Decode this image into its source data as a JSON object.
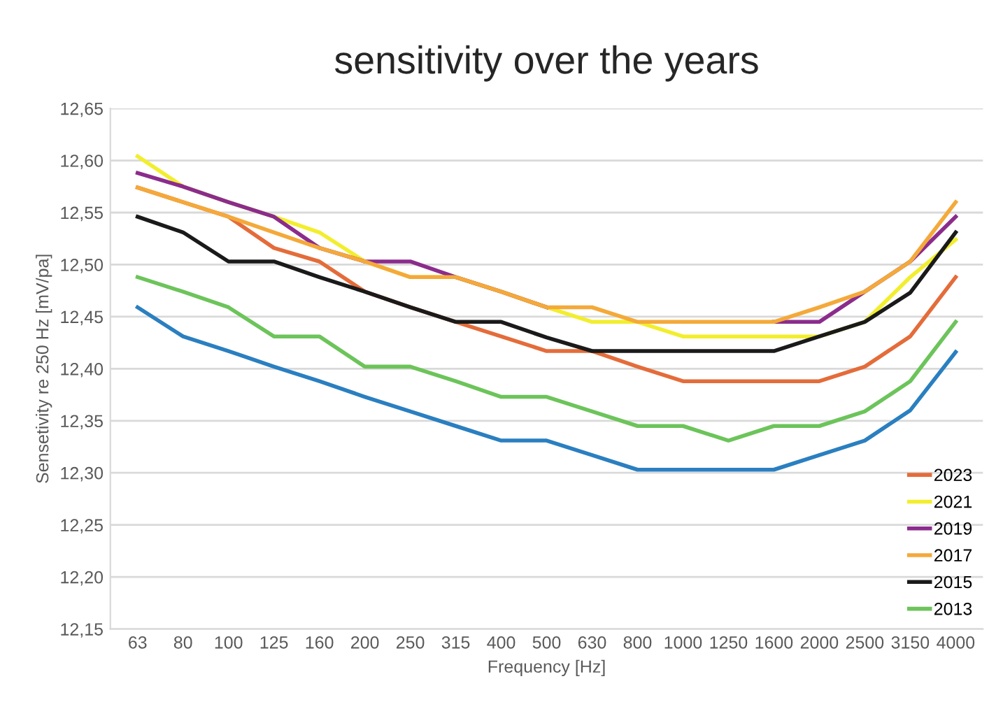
{
  "chart_data": {
    "type": "line",
    "title": "sensitivity over the years",
    "xlabel": "Frequency [Hz]",
    "ylabel": "Sensetivity re 250 Hz [mV/pa]",
    "categories": [
      "63",
      "80",
      "100",
      "125",
      "160",
      "200",
      "250",
      "315",
      "400",
      "500",
      "630",
      "800",
      "1000",
      "1250",
      "1600",
      "2000",
      "2500",
      "3150",
      "4000"
    ],
    "ylim": [
      12.15,
      12.65
    ],
    "yticks": [
      {
        "value": 12.15,
        "label": "12,15"
      },
      {
        "value": 12.2,
        "label": "12,20"
      },
      {
        "value": 12.25,
        "label": "12,25"
      },
      {
        "value": 12.3,
        "label": "12,30"
      },
      {
        "value": 12.35,
        "label": "12,35"
      },
      {
        "value": 12.4,
        "label": "12,40"
      },
      {
        "value": 12.45,
        "label": "12,45"
      },
      {
        "value": 12.5,
        "label": "12,50"
      },
      {
        "value": 12.55,
        "label": "12,55"
      },
      {
        "value": 12.6,
        "label": "12,60"
      },
      {
        "value": 12.65,
        "label": "12,65"
      }
    ],
    "grid": "y",
    "legend": "bottom right",
    "marker": "none",
    "line_style": "solid",
    "series": [
      {
        "color": "#2a7fc0",
        "values": [
          12.459,
          12.431,
          12.417,
          12.402,
          12.388,
          12.373,
          12.359,
          12.345,
          12.331,
          12.331,
          12.317,
          12.303,
          12.303,
          12.303,
          12.303,
          12.317,
          12.331,
          12.36,
          12.416
        ]
      },
      {
        "name": "2023",
        "color": "#e46c3a",
        "values": [
          12.574,
          12.56,
          12.546,
          12.516,
          12.503,
          12.474,
          12.459,
          12.445,
          12.431,
          12.417,
          12.417,
          12.402,
          12.388,
          12.388,
          12.388,
          12.388,
          12.402,
          12.431,
          12.488
        ]
      },
      {
        "name": "2021",
        "color": "#f2ee2e",
        "values": [
          12.604,
          12.575,
          12.56,
          12.546,
          12.531,
          12.503,
          12.488,
          12.488,
          12.474,
          12.459,
          12.445,
          12.445,
          12.431,
          12.431,
          12.431,
          12.431,
          12.445,
          12.488,
          12.524
        ]
      },
      {
        "name": "2019",
        "color": "#8b2c8c",
        "values": [
          12.588,
          12.575,
          12.56,
          12.546,
          12.516,
          12.503,
          12.503,
          12.488,
          12.474,
          12.459,
          null,
          null,
          null,
          null,
          12.445,
          12.445,
          12.474,
          12.503,
          12.546
        ]
      },
      {
        "name": "2017",
        "color": "#f4a93a",
        "values": [
          12.574,
          12.56,
          12.546,
          12.531,
          12.516,
          12.503,
          12.488,
          12.488,
          12.474,
          12.459,
          12.459,
          12.445,
          12.445,
          12.445,
          12.445,
          12.459,
          12.474,
          12.503,
          12.56
        ]
      },
      {
        "name": "2015",
        "color": "#1a1a1a",
        "values": [
          12.546,
          12.531,
          12.503,
          12.503,
          12.488,
          12.474,
          12.459,
          12.445,
          12.445,
          12.43,
          12.417,
          12.417,
          12.417,
          12.417,
          12.417,
          12.431,
          12.445,
          12.473,
          12.531
        ]
      },
      {
        "name": "2013",
        "color": "#6cc45a",
        "values": [
          12.488,
          12.474,
          12.459,
          12.431,
          12.431,
          12.402,
          12.402,
          12.388,
          12.373,
          12.373,
          12.359,
          12.345,
          12.345,
          12.331,
          12.345,
          12.345,
          12.359,
          12.388,
          12.445
        ]
      }
    ]
  }
}
